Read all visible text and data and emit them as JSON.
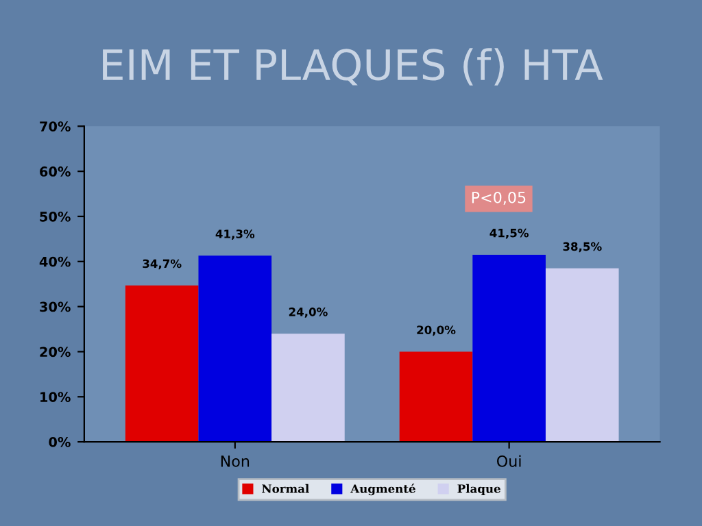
{
  "chart_data": {
    "type": "bar",
    "title": "EIM ET PLAQUES (f) HTA",
    "categories": [
      "Non",
      "Oui"
    ],
    "series": [
      {
        "name": "Normal",
        "color": "#e00000",
        "values": [
          34.7,
          20.0
        ],
        "value_labels": [
          "34,7%",
          "20,0%"
        ]
      },
      {
        "name": "Augmenté",
        "color": "#0000e0",
        "values": [
          41.3,
          41.5
        ],
        "value_labels": [
          "41,3%",
          "41,5%"
        ]
      },
      {
        "name": "Plaque",
        "color": "#d0d0f0",
        "values": [
          24.0,
          38.5
        ],
        "value_labels": [
          "24,0%",
          "38,5%"
        ]
      }
    ],
    "ylim": [
      0,
      70
    ],
    "yticks": [
      {
        "value": 0,
        "label": "0%"
      },
      {
        "value": 10,
        "label": "10%"
      },
      {
        "value": 20,
        "label": "20%"
      },
      {
        "value": 30,
        "label": "30%"
      },
      {
        "value": 40,
        "label": "40%"
      },
      {
        "value": 50,
        "label": "50%"
      },
      {
        "value": 60,
        "label": "60%"
      },
      {
        "value": 70,
        "label": "70%"
      }
    ],
    "annotations": [
      "P<0,05"
    ],
    "grid": false,
    "legend": "bottom"
  }
}
